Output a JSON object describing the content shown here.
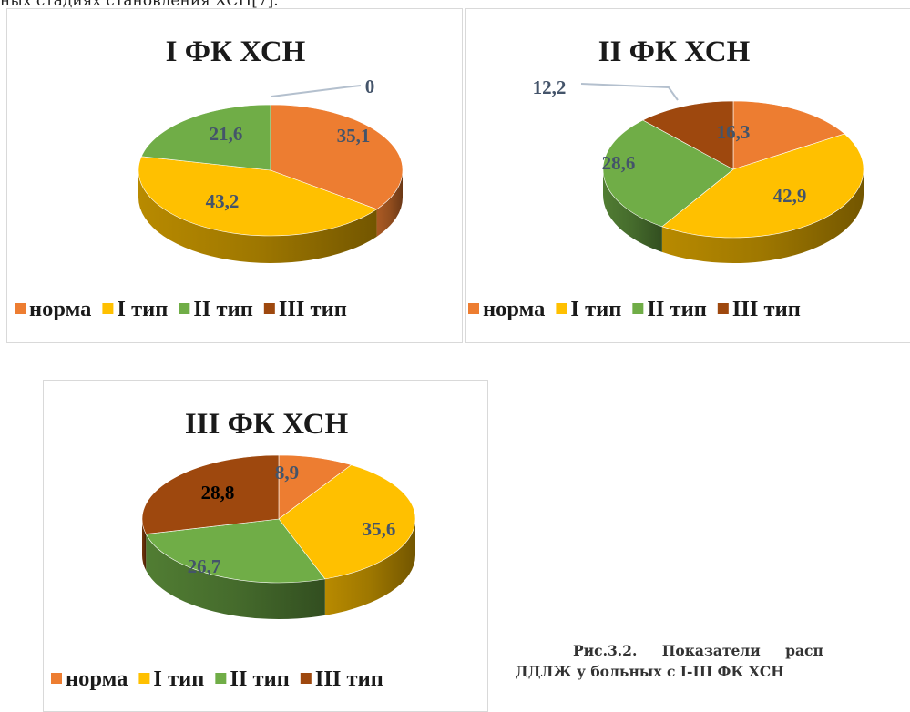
{
  "page": {
    "top_text": "ных стадиях становления ХСН[7].",
    "caption_line1": "Рис.3.2. Показатели расп",
    "caption_line2": "ДДЛЖ у больных с I-III ФК ХСН"
  },
  "colors": {
    "норма": "#ED7D31",
    "I тип": "#FFC000",
    "II тип": "#70AD47",
    "III тип": "#9E480E",
    "label": "#44546A",
    "label_dark": "#000000",
    "leader": "#B4C0CE"
  },
  "legend": [
    "норма",
    "I тип",
    "II тип",
    "III тип"
  ],
  "chart_data": [
    {
      "type": "pie",
      "title": "I ФК ХСН",
      "categories": [
        "норма",
        "I тип",
        "II тип",
        "III тип"
      ],
      "values": [
        35.1,
        43.2,
        21.6,
        0
      ],
      "data_labels": [
        "35,1",
        "43,2",
        "21,6",
        "0"
      ]
    },
    {
      "type": "pie",
      "title": "II ФК ХСН",
      "categories": [
        "норма",
        "I тип",
        "II тип",
        "III тип"
      ],
      "values": [
        16.3,
        42.9,
        28.6,
        12.2
      ],
      "data_labels": [
        "16,3",
        "42,9",
        "28,6",
        "12,2"
      ]
    },
    {
      "type": "pie",
      "title": "III ФК ХСН",
      "categories": [
        "норма",
        "I тип",
        "II тип",
        "III тип"
      ],
      "values": [
        8.9,
        35.6,
        26.7,
        28.8
      ],
      "data_labels": [
        "8,9",
        "35,6",
        "26,7",
        "28,8"
      ]
    }
  ]
}
